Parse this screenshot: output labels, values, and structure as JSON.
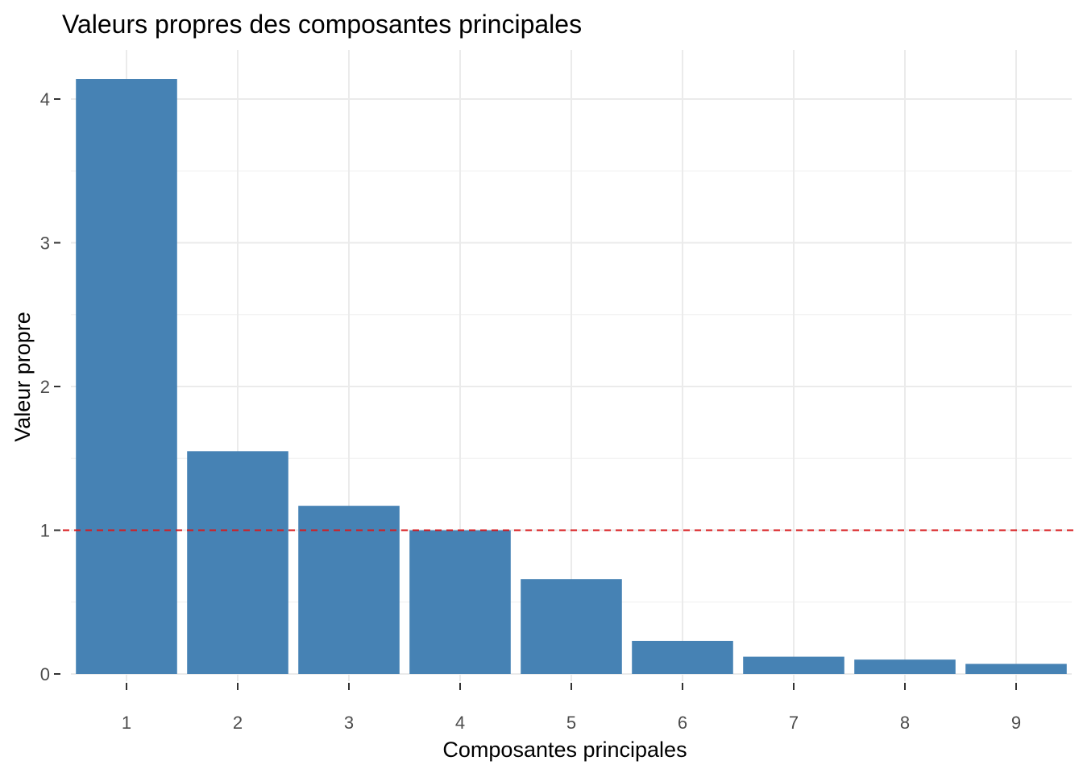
{
  "chart_data": {
    "type": "bar",
    "title": "Valeurs propres des composantes principales",
    "xlabel": "Composantes principales",
    "ylabel": "Valeur propre",
    "categories": [
      "1",
      "2",
      "3",
      "4",
      "5",
      "6",
      "7",
      "8",
      "9"
    ],
    "values": [
      4.14,
      1.55,
      1.17,
      1.0,
      0.66,
      0.23,
      0.12,
      0.1,
      0.07
    ],
    "ylim": [
      0,
      4.35
    ],
    "yticks": [
      "0",
      "1",
      "2",
      "3",
      "4"
    ],
    "reference_line": {
      "y": 1,
      "style": "dashed",
      "color": "#d7191c"
    },
    "bar_color": "#4682b4",
    "grid": true,
    "legend": "none"
  }
}
